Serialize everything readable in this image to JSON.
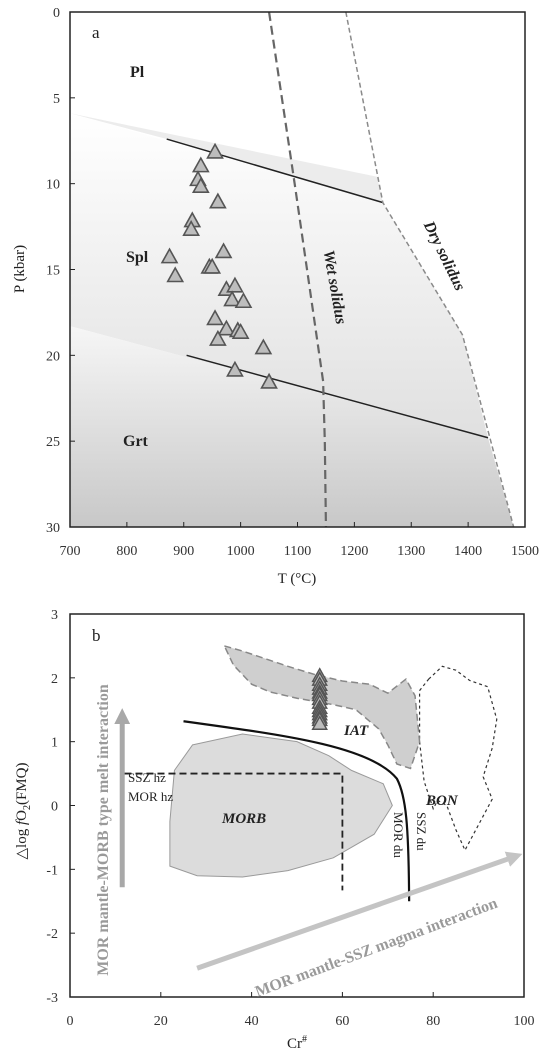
{
  "chart_data": [
    {
      "panel": "a",
      "type": "scatter",
      "xlabel": "T (°C)",
      "ylabel": "P (kbar)",
      "xlim": [
        700,
        1500
      ],
      "ylim": [
        30,
        0
      ],
      "xticks": [
        700,
        800,
        900,
        1000,
        1100,
        1200,
        1300,
        1400,
        1500
      ],
      "yticks": [
        0,
        5,
        10,
        15,
        20,
        25,
        30
      ],
      "grid": false,
      "regions": [
        {
          "label": "Pl",
          "x": 750,
          "y": 3.5
        },
        {
          "label": "Spl",
          "x": 720,
          "y": 14.5
        },
        {
          "label": "Grt",
          "x": 735,
          "y": 25.5
        }
      ],
      "boundaries": [
        {
          "name": "Pl-Spl",
          "x": [
            870,
            1250
          ],
          "y": [
            7.4,
            11.1
          ]
        },
        {
          "name": "Spl-Grt",
          "x": [
            905,
            1435
          ],
          "y": [
            20.0,
            24.8
          ]
        }
      ],
      "solidi": [
        {
          "name": "Wet solidus",
          "x": [
            1050,
            1095,
            1145,
            1148,
            1150
          ],
          "y": [
            0,
            10,
            21.5,
            25,
            30
          ]
        },
        {
          "name": "Dry solidus",
          "x": [
            1185,
            1250,
            1390,
            1480
          ],
          "y": [
            0,
            11.1,
            18.8,
            30
          ]
        }
      ],
      "series": [
        {
          "marker": "triangle",
          "x": [
            955,
            930,
            925,
            930,
            960,
            915,
            913,
            875,
            885,
            945,
            950,
            970,
            975,
            990,
            985,
            1005,
            955,
            975,
            995,
            960,
            1000,
            1040,
            990,
            1050
          ],
          "y": [
            8.2,
            9.0,
            9.8,
            10.2,
            11.1,
            12.2,
            12.7,
            14.3,
            15.4,
            14.9,
            14.9,
            14.0,
            16.2,
            16.0,
            16.8,
            16.9,
            17.9,
            18.5,
            18.6,
            19.1,
            18.7,
            19.6,
            20.9,
            21.6
          ]
        }
      ]
    },
    {
      "panel": "b",
      "type": "scatter",
      "xlabel": "Cr#",
      "ylabel": "△log fO2(FMQ)",
      "xlim": [
        0,
        100
      ],
      "ylim": [
        -3,
        3
      ],
      "xticks": [
        0,
        20,
        40,
        60,
        80,
        100
      ],
      "yticks": [
        -3,
        -2,
        -1,
        0,
        1,
        2,
        3
      ],
      "grid": false,
      "fields": [
        {
          "label": "MORB",
          "x": 35,
          "y": -0.2
        },
        {
          "label": "IAT",
          "x": 62,
          "y": 1.45
        },
        {
          "label": "BON",
          "x": 82,
          "y": 0.3
        }
      ],
      "line_labels": {
        "ssz_hz": "SSZ hz",
        "mor_hz": "MOR hz",
        "mor_du": "MOR du",
        "ssz_du": "SSZ du"
      },
      "arrows": {
        "vertical": "MOR mantle-MORB type melt interaction",
        "diagonal": "MOR mantle-SSZ magma interaction"
      },
      "series": [
        {
          "marker": "triangle",
          "x": [
            55,
            55,
            55,
            55,
            55,
            55,
            55,
            55,
            55,
            55,
            55,
            55,
            55,
            55
          ],
          "y": [
            2.02,
            1.96,
            1.88,
            1.82,
            1.76,
            1.72,
            1.66,
            1.6,
            1.52,
            1.47,
            1.42,
            1.37,
            1.33,
            1.27
          ]
        }
      ]
    }
  ],
  "panel_a": {
    "letter": "a",
    "xlabel": "T (°C)",
    "ylabel": "P (kbar)",
    "xticks": [
      "700",
      "800",
      "900",
      "1000",
      "1100",
      "1200",
      "1300",
      "1400",
      "1500"
    ],
    "yticks": [
      "0",
      "5",
      "10",
      "15",
      "20",
      "25",
      "30"
    ],
    "regions": [
      "Pl",
      "Spl",
      "Grt"
    ],
    "wet": "Wet solidus",
    "dry": "Dry solidus"
  },
  "panel_b": {
    "letter": "b",
    "xlabel_main": "Cr",
    "xlabel_sup": "#",
    "ylabel_a": "△log ",
    "ylabel_f": "f",
    "ylabel_b": "O",
    "ylabel_sub": "2",
    "ylabel_c": "(FMQ)",
    "xticks": [
      "0",
      "20",
      "40",
      "60",
      "80",
      "100"
    ],
    "yticks": [
      "-3",
      "-2",
      "-1",
      "0",
      "1",
      "2",
      "3"
    ],
    "morb": "MORB",
    "iat": "IAT",
    "bon": "BON",
    "ssz_hz": "SSZ hz",
    "mor_hz": "MOR hz",
    "mor_du": "MOR du",
    "ssz_du": "SSZ du",
    "arrow_v": "MOR mantle-MORB type melt interaction",
    "arrow_d": "MOR mantle-SSZ magma interaction"
  },
  "colors": {
    "axis": "#222222",
    "shade": "#d4d4d4",
    "dash": "#777777",
    "triangle_fill": "#bdbdbd",
    "triangle_stroke": "#555555",
    "field_fill": "#d2d2d2",
    "arrow": "#a8a8a8"
  }
}
